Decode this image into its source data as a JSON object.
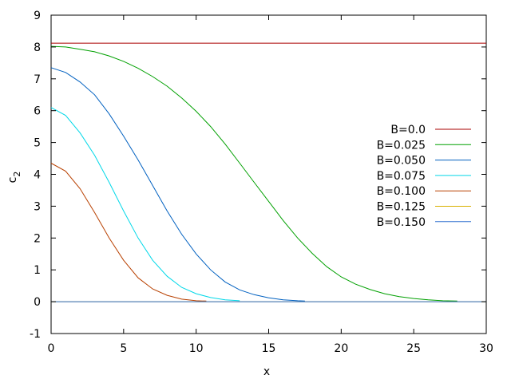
{
  "chart_data": {
    "type": "line",
    "title": "",
    "xlabel": "x",
    "ylabel": "c",
    "ylabel_subscript": "2",
    "xlim": [
      0,
      30
    ],
    "ylim": [
      -1,
      9
    ],
    "xticks": [
      0,
      5,
      10,
      15,
      20,
      25,
      30
    ],
    "yticks": [
      -1,
      0,
      1,
      2,
      3,
      4,
      5,
      6,
      7,
      8,
      9
    ],
    "grid": false,
    "legend_position": "right",
    "series": [
      {
        "name": "B=0.0",
        "color": "#aa0000",
        "points": [
          [
            0,
            8.12
          ],
          [
            30,
            8.12
          ]
        ]
      },
      {
        "name": "B=0.025",
        "color": "#00a000",
        "points": [
          [
            0,
            8.02
          ],
          [
            1,
            8.0
          ],
          [
            2,
            7.93
          ],
          [
            3,
            7.85
          ],
          [
            4,
            7.72
          ],
          [
            5,
            7.55
          ],
          [
            6,
            7.33
          ],
          [
            7,
            7.07
          ],
          [
            8,
            6.77
          ],
          [
            9,
            6.4
          ],
          [
            10,
            5.98
          ],
          [
            11,
            5.5
          ],
          [
            12,
            4.95
          ],
          [
            13,
            4.35
          ],
          [
            14,
            3.75
          ],
          [
            15,
            3.15
          ],
          [
            16,
            2.55
          ],
          [
            17,
            2.0
          ],
          [
            18,
            1.52
          ],
          [
            19,
            1.1
          ],
          [
            20,
            0.78
          ],
          [
            21,
            0.55
          ],
          [
            22,
            0.38
          ],
          [
            23,
            0.25
          ],
          [
            24,
            0.16
          ],
          [
            25,
            0.1
          ],
          [
            26,
            0.06
          ],
          [
            27,
            0.03
          ],
          [
            28,
            0.02
          ]
        ]
      },
      {
        "name": "B=0.050",
        "color": "#0060c0",
        "points": [
          [
            0,
            7.35
          ],
          [
            1,
            7.2
          ],
          [
            2,
            6.9
          ],
          [
            3,
            6.5
          ],
          [
            4,
            5.9
          ],
          [
            5,
            5.2
          ],
          [
            6,
            4.45
          ],
          [
            7,
            3.65
          ],
          [
            8,
            2.85
          ],
          [
            9,
            2.12
          ],
          [
            10,
            1.5
          ],
          [
            11,
            1.0
          ],
          [
            12,
            0.62
          ],
          [
            13,
            0.37
          ],
          [
            14,
            0.22
          ],
          [
            15,
            0.12
          ],
          [
            16,
            0.06
          ],
          [
            17,
            0.03
          ],
          [
            17.5,
            0.02
          ]
        ]
      },
      {
        "name": "B=0.075",
        "color": "#00d8e8",
        "points": [
          [
            0,
            6.1
          ],
          [
            1,
            5.85
          ],
          [
            2,
            5.3
          ],
          [
            3,
            4.6
          ],
          [
            4,
            3.75
          ],
          [
            5,
            2.85
          ],
          [
            6,
            2.0
          ],
          [
            7,
            1.3
          ],
          [
            8,
            0.8
          ],
          [
            9,
            0.45
          ],
          [
            10,
            0.25
          ],
          [
            11,
            0.13
          ],
          [
            12,
            0.06
          ],
          [
            13,
            0.03
          ]
        ]
      },
      {
        "name": "B=0.100",
        "color": "#b84000",
        "points": [
          [
            0,
            4.35
          ],
          [
            1,
            4.1
          ],
          [
            2,
            3.55
          ],
          [
            3,
            2.8
          ],
          [
            4,
            2.0
          ],
          [
            5,
            1.3
          ],
          [
            6,
            0.75
          ],
          [
            7,
            0.4
          ],
          [
            8,
            0.2
          ],
          [
            9,
            0.08
          ],
          [
            10,
            0.03
          ],
          [
            10.7,
            0.02
          ]
        ]
      },
      {
        "name": "B=0.125",
        "color": "#d8b000",
        "points": [
          [
            0,
            0.0
          ],
          [
            30,
            0.0
          ]
        ]
      },
      {
        "name": "B=0.150",
        "color": "#3070d0",
        "points": [
          [
            0,
            0.0
          ],
          [
            30,
            0.0
          ]
        ]
      }
    ]
  }
}
